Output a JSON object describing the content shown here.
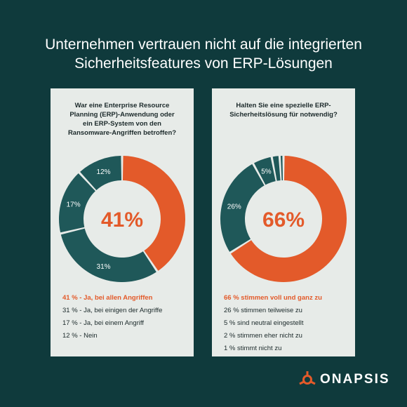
{
  "title_line1": "Unternehmen vertrauen nicht auf die integrierten",
  "title_line2": "Sicherheitsfeatures von ERP-Lösungen",
  "colors": {
    "background": "#0f3a3c",
    "accent": "#e35a2a",
    "teal": "#1f5859",
    "card": "#e7ebe8"
  },
  "chart_data": [
    {
      "type": "pie",
      "question": [
        "War eine Enterprise Resource",
        "Planning (ERP)-Anwendung oder",
        "ein ERP-System von den",
        "Ransomware-Angriffen betroffen?"
      ],
      "center_label": "41%",
      "slices": [
        {
          "value": 41,
          "label": "",
          "color": "#e35a2a"
        },
        {
          "value": 31,
          "label": "31%",
          "color": "#1f5859"
        },
        {
          "value": 17,
          "label": "17%",
          "color": "#1f5859"
        },
        {
          "value": 12,
          "label": "12%",
          "color": "#1f5859"
        }
      ],
      "legend": [
        "41 % - Ja, bei allen Angriffen",
        "31 % - Ja, bei einigen der Angriffe",
        "17 % - Ja, bei einem Angriff",
        "12 % - Nein"
      ]
    },
    {
      "type": "pie",
      "question": [
        "Halten Sie eine spezielle ERP-",
        "Sicherheitslösung für notwendig?"
      ],
      "center_label": "66%",
      "slices": [
        {
          "value": 66,
          "label": "",
          "color": "#e35a2a"
        },
        {
          "value": 26,
          "label": "26%",
          "color": "#1f5859"
        },
        {
          "value": 5,
          "label": "5%",
          "color": "#1f5859"
        },
        {
          "value": 2,
          "label": "",
          "color": "#1f5859"
        },
        {
          "value": 1,
          "label": "",
          "color": "#1f5859"
        }
      ],
      "legend": [
        "66 % stimmen voll und ganz zu",
        "26 % stimmen teilweise zu",
        "5 % sind neutral eingestellt",
        "2 % stimmen eher nicht zu",
        "1 % stimmt nicht zu"
      ]
    }
  ],
  "brand": {
    "name": "ONAPSIS",
    "logo_icon": "onapsis-logo-icon"
  }
}
